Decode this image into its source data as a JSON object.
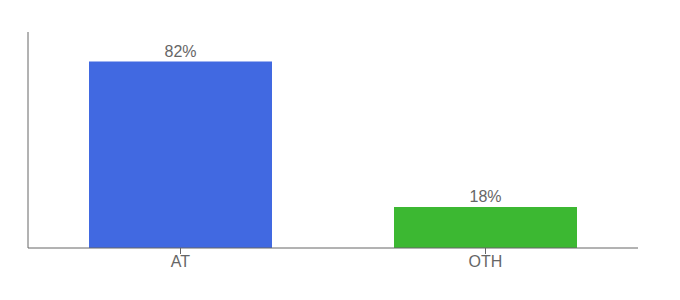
{
  "chart_data": {
    "type": "bar",
    "categories": [
      "AT",
      "OTH"
    ],
    "values": [
      82,
      18
    ],
    "value_labels": [
      "82%",
      "18%"
    ],
    "colors": [
      "#4169e1",
      "#3cb832"
    ],
    "ylim": [
      0,
      95
    ],
    "data_labels": true,
    "tick_labels": "x",
    "grid": false
  }
}
